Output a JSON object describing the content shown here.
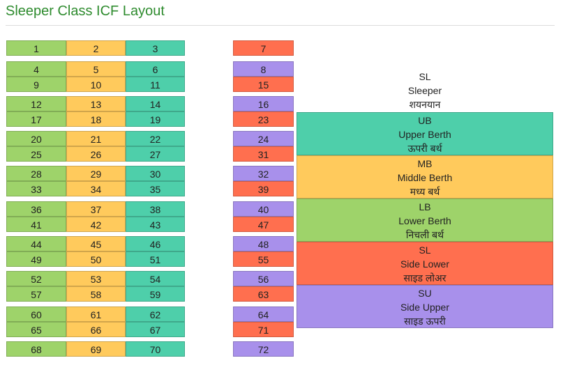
{
  "title": "Sleeper Class ICF Layout",
  "colors": {
    "lower": "#9ed36a",
    "middle": "#ffca5c",
    "upper": "#4ecfaa",
    "side_lower": "#ff6f4f",
    "side_upper": "#a890eb"
  },
  "bays": [
    {
      "main": [
        [
          1,
          2,
          3
        ]
      ],
      "side": [
        {
          "no": 7,
          "type": "SL"
        }
      ]
    },
    {
      "main": [
        [
          4,
          5,
          6
        ],
        [
          9,
          10,
          11
        ]
      ],
      "side": [
        {
          "no": 8,
          "type": "SU"
        },
        {
          "no": 15,
          "type": "SL"
        }
      ]
    },
    {
      "main": [
        [
          12,
          13,
          14
        ],
        [
          17,
          18,
          19
        ]
      ],
      "side": [
        {
          "no": 16,
          "type": "SU"
        },
        {
          "no": 23,
          "type": "SL"
        }
      ]
    },
    {
      "main": [
        [
          20,
          21,
          22
        ],
        [
          25,
          26,
          27
        ]
      ],
      "side": [
        {
          "no": 24,
          "type": "SU"
        },
        {
          "no": 31,
          "type": "SL"
        }
      ]
    },
    {
      "main": [
        [
          28,
          29,
          30
        ],
        [
          33,
          34,
          35
        ]
      ],
      "side": [
        {
          "no": 32,
          "type": "SU"
        },
        {
          "no": 39,
          "type": "SL"
        }
      ]
    },
    {
      "main": [
        [
          36,
          37,
          38
        ],
        [
          41,
          42,
          43
        ]
      ],
      "side": [
        {
          "no": 40,
          "type": "SU"
        },
        {
          "no": 47,
          "type": "SL"
        }
      ]
    },
    {
      "main": [
        [
          44,
          45,
          46
        ],
        [
          49,
          50,
          51
        ]
      ],
      "side": [
        {
          "no": 48,
          "type": "SU"
        },
        {
          "no": 55,
          "type": "SL"
        }
      ]
    },
    {
      "main": [
        [
          52,
          53,
          54
        ],
        [
          57,
          58,
          59
        ]
      ],
      "side": [
        {
          "no": 56,
          "type": "SU"
        },
        {
          "no": 63,
          "type": "SL"
        }
      ]
    },
    {
      "main": [
        [
          60,
          61,
          62
        ],
        [
          65,
          66,
          67
        ]
      ],
      "side": [
        {
          "no": 64,
          "type": "SU"
        },
        {
          "no": 71,
          "type": "SL"
        }
      ]
    },
    {
      "main": [
        [
          68,
          69,
          70
        ]
      ],
      "side": [
        {
          "no": 72,
          "type": "SU"
        }
      ]
    }
  ],
  "legend": {
    "header": {
      "code": "SL",
      "en": "Sleeper",
      "hi": "शयनयान"
    },
    "items": [
      {
        "code": "UB",
        "en": "Upper Berth",
        "hi": "ऊपरी बर्थ",
        "color": "#4ecfaa"
      },
      {
        "code": "MB",
        "en": "Middle Berth",
        "hi": "मध्य बर्थ",
        "color": "#ffca5c"
      },
      {
        "code": "LB",
        "en": "Lower Berth",
        "hi": "निचली बर्थ",
        "color": "#9ed36a"
      },
      {
        "code": "SL",
        "en": "Side Lower",
        "hi": "साइड लोअर",
        "color": "#ff6f4f"
      },
      {
        "code": "SU",
        "en": "Side Upper",
        "hi": "साइड ऊपरी",
        "color": "#a890eb"
      }
    ]
  }
}
